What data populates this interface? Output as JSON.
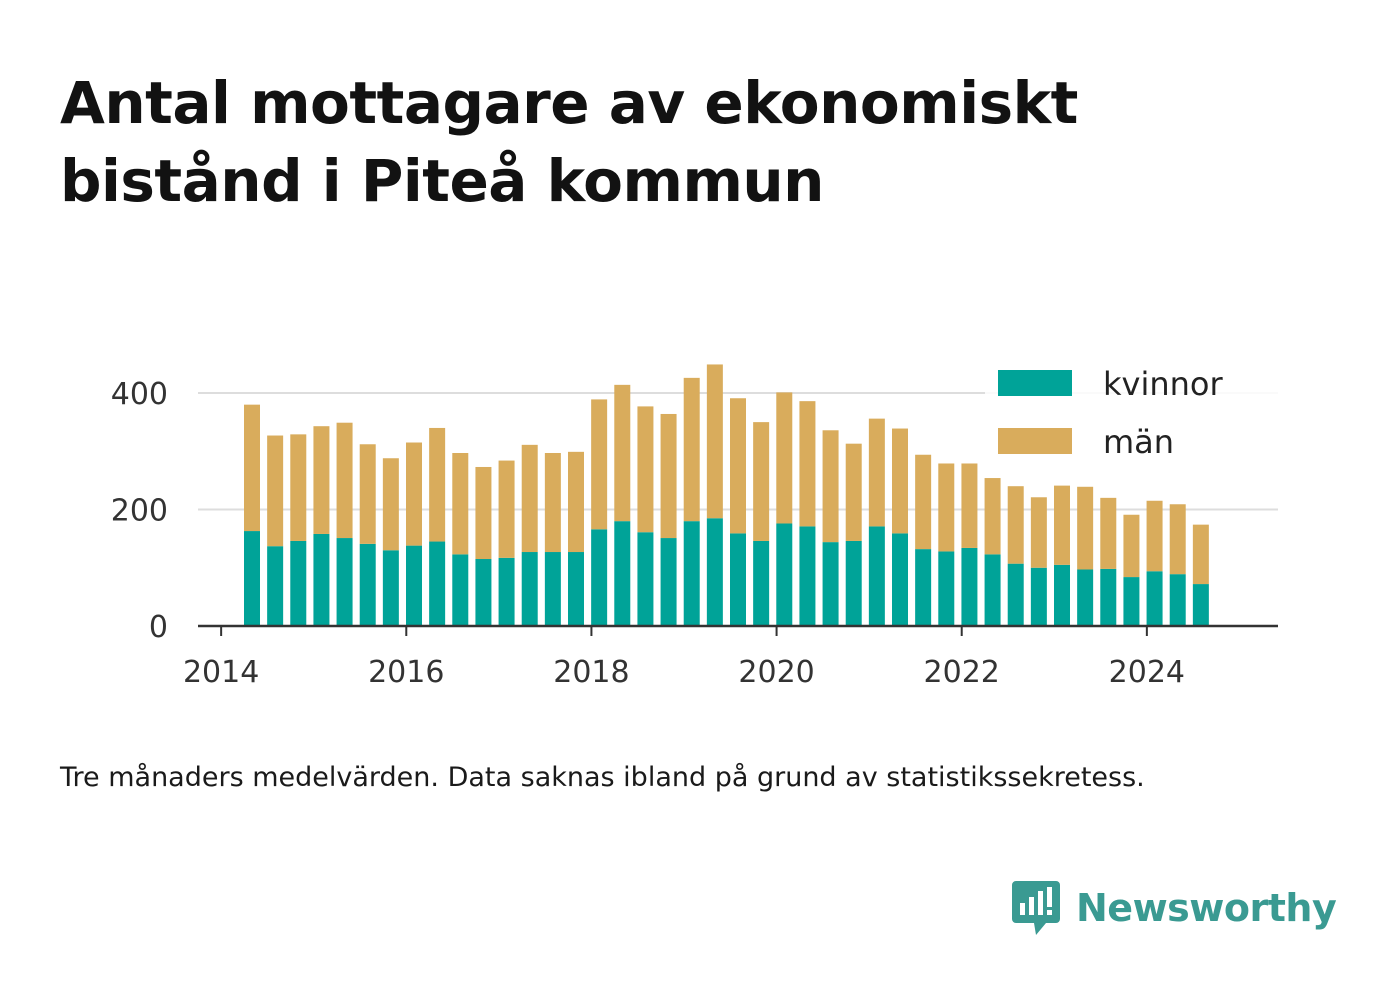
{
  "title": "Antal mottagare av ekonomiskt bistånd i Piteå kommun",
  "caption": "Tre månaders medelvärden. Data saknas ibland på grund av statistikssekretess.",
  "brand": {
    "name": "Newsworthy",
    "icon": "newsworthy-logo-icon",
    "color": "#3a9a92"
  },
  "colors": {
    "kvinnor": "#00a398",
    "man": "#d9ac5c",
    "grid": "#dddddd",
    "axis": "#333333"
  },
  "chart_data": {
    "type": "bar",
    "stacked": true,
    "title": "Antal mottagare av ekonomiskt bistånd i Piteå kommun",
    "xlabel": "",
    "ylabel": "",
    "ylim": [
      0,
      450
    ],
    "yticks": [
      0,
      200,
      400
    ],
    "xticks": [
      "2014",
      "2016",
      "2018",
      "2020",
      "2022",
      "2024"
    ],
    "xlim": [
      "2013-10",
      "2025-06"
    ],
    "grid": "horizontal",
    "legend": "top-right",
    "x": [
      "2014-05",
      "2014-08",
      "2014-11",
      "2015-02",
      "2015-05",
      "2015-08",
      "2015-11",
      "2016-02",
      "2016-05",
      "2016-08",
      "2016-11",
      "2017-02",
      "2017-05",
      "2017-08",
      "2017-11",
      "2018-02",
      "2018-05",
      "2018-08",
      "2018-11",
      "2019-02",
      "2019-05",
      "2019-08",
      "2019-11",
      "2020-02",
      "2020-05",
      "2020-08",
      "2020-11",
      "2021-02",
      "2021-05",
      "2021-08",
      "2021-11",
      "2022-02",
      "2022-05",
      "2022-08",
      "2022-11",
      "2023-02",
      "2023-05",
      "2023-08",
      "2023-11",
      "2024-02",
      "2024-05",
      "2024-08"
    ],
    "series": [
      {
        "name": "kvinnor",
        "color": "#00a398",
        "values": [
          163,
          137,
          146,
          158,
          151,
          141,
          130,
          138,
          145,
          123,
          115,
          117,
          127,
          127,
          127,
          166,
          180,
          161,
          151,
          180,
          185,
          159,
          146,
          176,
          171,
          144,
          146,
          171,
          159,
          132,
          128,
          134,
          123,
          107,
          100,
          105,
          97,
          98,
          84,
          94,
          89,
          72
        ]
      },
      {
        "name": "män",
        "color": "#d9ac5c",
        "values": [
          217,
          190,
          183,
          185,
          198,
          171,
          158,
          177,
          195,
          174,
          158,
          167,
          184,
          170,
          172,
          223,
          234,
          216,
          213,
          246,
          264,
          232,
          204,
          225,
          215,
          192,
          167,
          185,
          180,
          162,
          151,
          145,
          131,
          133,
          121,
          136,
          142,
          122,
          107,
          121,
          120,
          102
        ]
      }
    ]
  }
}
